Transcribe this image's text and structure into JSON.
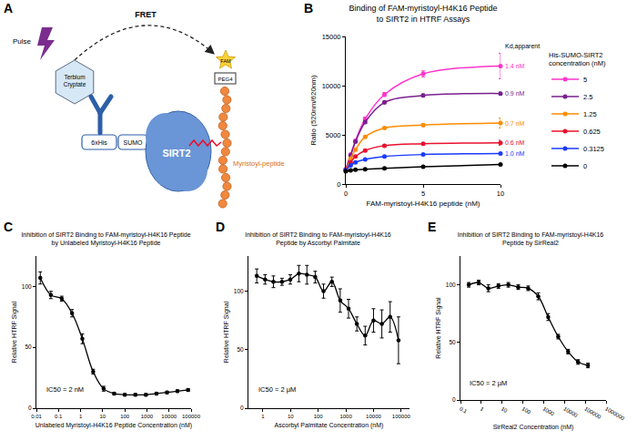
{
  "panel_labels": [
    "A",
    "B",
    "C",
    "D",
    "E"
  ],
  "diagram": {
    "pulse": "Pulse",
    "fret": "FRET",
    "donor": "Terbium Cryptate",
    "tag": "6xHis",
    "fusion": "SUMO",
    "protein": "SIRT2",
    "fluorophore": "FAM",
    "linker": "PEG4",
    "ligand": "Myristoyl-peptide"
  },
  "chart_data": [
    {
      "type": "line",
      "title": "Binding of FAM-myristoyl-H4K16 Peptide\nto SIRT2 in HTRF Assays",
      "x_label": "FAM-myristoyl-H4K16 peptide (nM)",
      "y_label": "Ratio (520nm/620nm)",
      "x": [
        0,
        0.3125,
        0.625,
        1.25,
        2.5,
        5,
        10
      ],
      "xlim": [
        0,
        10
      ],
      "xticks": [
        0,
        5,
        10
      ],
      "ylim": [
        0,
        15000
      ],
      "yticks": [
        0,
        5000,
        10000,
        15000
      ],
      "grid": false,
      "marker": "circle",
      "legend": "right",
      "legend_title": "His-SUMO-SIRT2\nconcentration (nM)",
      "annotation_title": "Kd,apparent",
      "series": [
        {
          "name": "5",
          "color": "#ff33cc",
          "values": [
            1500,
            3000,
            4400,
            6600,
            9100,
            11200,
            12000
          ],
          "errors": [
            100,
            100,
            150,
            200,
            200,
            300,
            1300
          ],
          "annotation": "1.4 nM"
        },
        {
          "name": "2.5",
          "color": "#7a1f8f",
          "values": [
            1500,
            2900,
            4300,
            6300,
            8300,
            9000,
            9200
          ],
          "errors": [
            50,
            100,
            100,
            150,
            150,
            150,
            150
          ],
          "annotation": "0.9 nM"
        },
        {
          "name": "1.25",
          "color": "#ff8c00",
          "values": [
            1400,
            2600,
            3500,
            4800,
            5700,
            6000,
            6200
          ],
          "errors": [
            50,
            50,
            100,
            100,
            100,
            150,
            500
          ],
          "annotation": "0.7 nM"
        },
        {
          "name": "0.625",
          "color": "#e8112d",
          "values": [
            1400,
            2200,
            2800,
            3400,
            3900,
            4100,
            4200
          ],
          "errors": [
            50,
            50,
            50,
            100,
            100,
            100,
            250
          ],
          "annotation": "0.6 nM"
        },
        {
          "name": "0.3125",
          "color": "#1a3cff",
          "values": [
            1400,
            1900,
            2200,
            2500,
            2800,
            3000,
            3100
          ],
          "errors": [
            50,
            50,
            50,
            50,
            50,
            100,
            100
          ],
          "annotation": "1.0 nM"
        },
        {
          "name": "0",
          "color": "#000000",
          "values": [
            1300,
            1400,
            1450,
            1500,
            1600,
            1750,
            2000
          ],
          "errors": [
            50,
            50,
            50,
            50,
            50,
            50,
            50
          ]
        }
      ]
    },
    {
      "type": "line",
      "title": "Inhibition of SIRT2 Binding to FAM-myristoyl-H4K16 Peptide\nby Unlabeled Myristoyl-H4K16 Peptide",
      "x_label": "Unlabeled Myristoyl-H4K16 Peptide Concentration (nM)",
      "y_label": "Relative HTRF Signal",
      "log": "x",
      "x": [
        0.015,
        0.045,
        0.14,
        0.41,
        1.2,
        3.7,
        11,
        33,
        100,
        300,
        900,
        2700,
        8100,
        24000,
        73000
      ],
      "values": [
        107,
        93,
        90,
        78,
        57,
        30,
        16,
        12,
        11,
        11,
        11,
        12,
        13,
        14,
        15
      ],
      "errors": [
        5,
        3,
        2,
        3,
        4,
        2,
        2,
        1,
        1,
        1,
        1,
        1,
        1,
        1,
        1
      ],
      "color": "#000000",
      "marker": "circle",
      "xlim": [
        0.01,
        100000
      ],
      "xticks": [
        0.01,
        0.1,
        1,
        10,
        100,
        1000,
        10000,
        100000
      ],
      "ylim": [
        0,
        125
      ],
      "yticks": [
        0,
        50,
        100
      ],
      "grid": false,
      "annotation": "IC50 = 2 nM"
    },
    {
      "type": "line",
      "title": "Inhibition of SIRT2 Binding to FAM-myristoyl-H4K16\nPeptide by Ascorbyl Palmitate",
      "x_label": "Ascorbyl Palmitate Concentration (nM)",
      "y_label": "Relative HTRF Signal",
      "log": "x",
      "x": [
        0.6,
        1.2,
        2.4,
        4.9,
        9.8,
        20,
        39,
        78,
        156,
        313,
        625,
        1250,
        2500,
        5000,
        10000,
        20000,
        40000,
        80000
      ],
      "values": [
        113,
        110,
        108,
        108,
        110,
        115,
        114,
        112,
        100,
        108,
        92,
        85,
        72,
        62,
        75,
        72,
        78,
        58
      ],
      "errors": [
        6,
        4,
        5,
        3,
        4,
        7,
        8,
        5,
        6,
        4,
        10,
        8,
        6,
        8,
        10,
        12,
        13,
        20
      ],
      "color": "#000000",
      "marker": "circle",
      "xlim": [
        0.3,
        200000
      ],
      "xticks": [
        1,
        10,
        100,
        1000,
        10000,
        100000
      ],
      "ylim": [
        0,
        130
      ],
      "yticks": [
        0,
        50,
        100
      ],
      "grid": false,
      "annotation": "IC50 = 2 µM"
    },
    {
      "type": "line",
      "title": "Inhibition of SIRT2 Binding to FAM-myristoyl-H4K16\nPeptide by SirReal2",
      "x_label": "SirReal2 Concentration (nM)",
      "y_label": "Relative HTRF Signal",
      "log": "x",
      "x": [
        0.25,
        0.75,
        2.2,
        6.7,
        20,
        60,
        180,
        550,
        1650,
        5000,
        15000,
        45000,
        135000
      ],
      "values": [
        100,
        102,
        97,
        99,
        100,
        98,
        97,
        90,
        72,
        55,
        42,
        33,
        30
      ],
      "errors": [
        2,
        2,
        3,
        2,
        2,
        2,
        2,
        3,
        3,
        2,
        2,
        2,
        2
      ],
      "color": "#000000",
      "marker": "circle",
      "xlim": [
        0.1,
        1000000
      ],
      "xticks": [
        0.1,
        1,
        10,
        100,
        1000,
        10000,
        100000,
        1000000
      ],
      "ylim": [
        0,
        125
      ],
      "yticks": [
        0,
        50,
        100
      ],
      "grid": false,
      "annotation": "IC50 = 2 µM"
    }
  ]
}
